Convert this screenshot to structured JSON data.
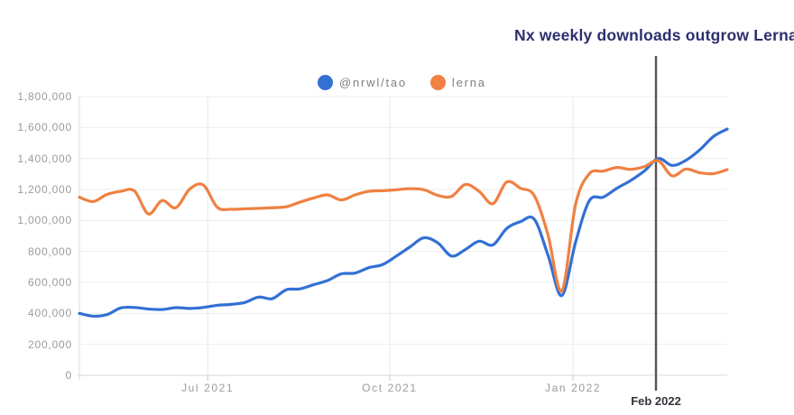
{
  "chart_data": {
    "type": "line",
    "title": "Nx weekly downloads outgrow Lerna",
    "xlabel": "",
    "ylabel": "",
    "ylim": [
      0,
      1800000
    ],
    "grid": true,
    "legend_position": "top-center",
    "y_ticks": [
      0,
      200000,
      400000,
      600000,
      800000,
      1000000,
      1200000,
      1400000,
      1600000,
      1800000
    ],
    "y_tick_labels": [
      "0",
      "200,000",
      "400,000",
      "600,000",
      "800,000",
      "1,000,000",
      "1,200,000",
      "1,400,000",
      "1,600,000",
      "1,800,000"
    ],
    "x_ticks": [
      {
        "label": "Jul 2021",
        "t": 0.198
      },
      {
        "label": "Oct 2021",
        "t": 0.479
      },
      {
        "label": "Jan 2022",
        "t": 0.762
      }
    ],
    "annotation": {
      "label": "Feb 2022",
      "t": 0.89
    },
    "x": [
      "2021-04-25",
      "2021-05-02",
      "2021-05-09",
      "2021-05-16",
      "2021-05-23",
      "2021-05-30",
      "2021-06-06",
      "2021-06-13",
      "2021-06-20",
      "2021-06-27",
      "2021-07-04",
      "2021-07-11",
      "2021-07-18",
      "2021-07-25",
      "2021-08-01",
      "2021-08-08",
      "2021-08-15",
      "2021-08-22",
      "2021-08-29",
      "2021-09-05",
      "2021-09-12",
      "2021-09-19",
      "2021-09-26",
      "2021-10-03",
      "2021-10-10",
      "2021-10-17",
      "2021-10-24",
      "2021-10-31",
      "2021-11-07",
      "2021-11-14",
      "2021-11-21",
      "2021-11-28",
      "2021-12-05",
      "2021-12-12",
      "2021-12-19",
      "2021-12-26",
      "2022-01-02",
      "2022-01-09",
      "2022-01-16",
      "2022-01-23",
      "2022-01-30",
      "2022-02-06",
      "2022-02-13",
      "2022-02-20",
      "2022-02-27",
      "2022-03-06",
      "2022-03-13",
      "2022-03-20"
    ],
    "series": [
      {
        "name": "@nrwl/tao",
        "color": "#3370d4",
        "values": [
          400000,
          382000,
          392000,
          435000,
          438000,
          428000,
          425000,
          437000,
          432000,
          438000,
          452000,
          458000,
          470000,
          505000,
          495000,
          552000,
          558000,
          585000,
          612000,
          655000,
          660000,
          695000,
          715000,
          770000,
          830000,
          888000,
          855000,
          770000,
          812000,
          866000,
          842000,
          948000,
          992000,
          1008000,
          775000,
          515000,
          860000,
          1128000,
          1150000,
          1208000,
          1258000,
          1320000,
          1400000,
          1355000,
          1388000,
          1455000,
          1542000,
          1590000
        ]
      },
      {
        "name": "lerna",
        "color": "#ef8142",
        "values": [
          1150000,
          1122000,
          1168000,
          1188000,
          1190000,
          1042000,
          1128000,
          1082000,
          1202000,
          1228000,
          1085000,
          1072000,
          1075000,
          1078000,
          1082000,
          1088000,
          1118000,
          1145000,
          1165000,
          1132000,
          1165000,
          1188000,
          1192000,
          1198000,
          1205000,
          1198000,
          1162000,
          1155000,
          1232000,
          1188000,
          1108000,
          1248000,
          1208000,
          1160000,
          905000,
          545000,
          1105000,
          1302000,
          1318000,
          1342000,
          1330000,
          1348000,
          1385000,
          1288000,
          1332000,
          1308000,
          1302000,
          1328000
        ]
      }
    ],
    "colors": {
      "title": "#2d2f6e",
      "axis_text": "#9b9b9b",
      "legend_text": "#7f7f7f",
      "gridline": "#ededed",
      "zero_line": "#d9d9d9",
      "vertical_gridline": "#e8e8e8",
      "tick_mark": "#c9c9c9",
      "annotation_line": "#54535a",
      "annotation_text": "#33333d"
    }
  }
}
